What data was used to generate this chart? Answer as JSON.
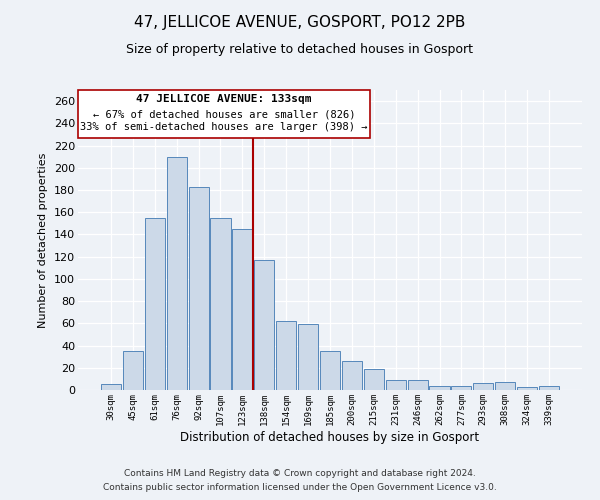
{
  "title": "47, JELLICOE AVENUE, GOSPORT, PO12 2PB",
  "subtitle": "Size of property relative to detached houses in Gosport",
  "xlabel": "Distribution of detached houses by size in Gosport",
  "ylabel": "Number of detached properties",
  "bar_labels": [
    "30sqm",
    "45sqm",
    "61sqm",
    "76sqm",
    "92sqm",
    "107sqm",
    "123sqm",
    "138sqm",
    "154sqm",
    "169sqm",
    "185sqm",
    "200sqm",
    "215sqm",
    "231sqm",
    "246sqm",
    "262sqm",
    "277sqm",
    "293sqm",
    "308sqm",
    "324sqm",
    "339sqm"
  ],
  "bar_values": [
    5,
    35,
    155,
    210,
    183,
    155,
    145,
    117,
    62,
    59,
    35,
    26,
    19,
    9,
    9,
    4,
    4,
    6,
    7,
    3,
    4
  ],
  "bar_color": "#ccd9e8",
  "bar_edge_color": "#5588bb",
  "vline_color": "#aa0000",
  "vline_index": 7,
  "annotation_title": "47 JELLICOE AVENUE: 133sqm",
  "annotation_line1": "← 67% of detached houses are smaller (826)",
  "annotation_line2": "33% of semi-detached houses are larger (398) →",
  "annotation_box_facecolor": "#ffffff",
  "annotation_box_edgecolor": "#aa0000",
  "footer1": "Contains HM Land Registry data © Crown copyright and database right 2024.",
  "footer2": "Contains public sector information licensed under the Open Government Licence v3.0.",
  "ylim": [
    0,
    270
  ],
  "yticks": [
    0,
    20,
    40,
    60,
    80,
    100,
    120,
    140,
    160,
    180,
    200,
    220,
    240,
    260
  ],
  "background_color": "#eef2f7",
  "grid_color": "#ffffff",
  "title_fontsize": 11,
  "subtitle_fontsize": 9
}
